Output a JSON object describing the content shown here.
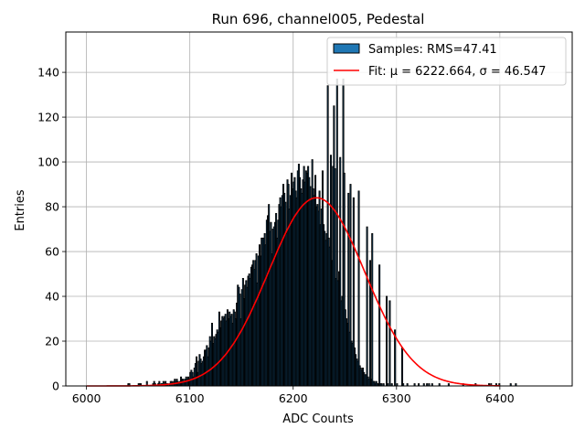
{
  "chart_data": {
    "type": "bar",
    "title": "Run 696, channel005, Pedestal",
    "xlabel": "ADC Counts",
    "ylabel": "Entries",
    "xlim": [
      5980,
      6470
    ],
    "ylim": [
      0,
      158
    ],
    "xticks": [
      6000,
      6100,
      6200,
      6300,
      6400
    ],
    "yticks": [
      0,
      20,
      40,
      60,
      80,
      100,
      120,
      140
    ],
    "grid": true,
    "legend_position": "top-right",
    "histogram": {
      "name": "Samples: RMS=47.41",
      "color": "#1f77b4",
      "edge_color": "#000000",
      "bin_width": 1,
      "bin_start": 6040,
      "values": [
        1,
        1,
        0,
        0,
        0,
        0,
        0,
        0,
        0,
        0,
        1,
        1,
        1,
        0,
        0,
        0,
        0,
        0,
        2,
        0,
        0,
        0,
        0,
        0,
        1,
        2,
        1,
        0,
        0,
        1,
        2,
        0,
        1,
        1,
        2,
        0,
        2,
        1,
        1,
        0,
        1,
        2,
        2,
        0,
        2,
        3,
        2,
        3,
        2,
        1,
        2,
        4,
        3,
        3,
        2,
        3,
        4,
        3,
        4,
        3,
        6,
        7,
        6,
        4,
        8,
        10,
        13,
        6,
        11,
        14,
        12,
        10,
        11,
        13,
        16,
        16,
        18,
        13,
        17,
        22,
        20,
        28,
        19,
        22,
        21,
        23,
        25,
        24,
        30,
        26,
        29,
        31,
        30,
        29,
        32,
        29,
        34,
        30,
        33,
        31,
        32,
        28,
        34,
        33,
        30,
        37,
        35,
        44,
        41,
        30,
        43,
        48,
        39,
        45,
        47,
        44,
        49,
        50,
        48,
        53,
        54,
        51,
        52,
        56,
        59,
        60,
        58,
        63,
        58,
        66,
        62,
        66,
        68,
        63,
        74,
        76,
        72,
        69,
        73,
        59,
        65,
        71,
        73,
        77,
        66,
        78,
        81,
        84,
        80,
        85,
        90,
        86,
        82,
        88,
        92,
        86,
        79,
        85,
        95,
        88,
        91,
        89,
        87,
        94,
        96,
        99,
        93,
        88,
        86,
        92,
        98,
        101,
        89,
        95,
        98,
        93,
        87,
        83,
        91,
        88,
        85,
        83,
        80,
        81,
        78,
        76,
        72,
        79,
        74,
        72,
        69,
        65,
        68,
        70,
        66,
        62,
        60,
        56,
        64,
        58,
        52,
        48,
        45,
        47,
        51,
        43,
        38,
        40,
        36,
        32,
        34,
        30,
        28,
        26,
        24,
        22,
        20,
        19,
        18,
        17,
        14,
        12,
        11,
        10,
        9,
        8,
        7,
        8,
        6,
        5,
        5,
        4,
        4,
        3,
        3,
        3,
        2,
        2,
        2,
        1,
        2,
        1,
        1,
        1,
        1,
        1,
        0,
        1,
        0,
        0,
        1,
        1,
        0,
        1,
        0,
        1,
        0,
        0,
        0,
        0,
        1,
        0,
        0,
        0,
        0,
        0,
        1,
        0,
        0,
        0,
        1,
        0,
        0,
        0,
        0,
        0,
        0,
        1,
        0,
        0,
        0,
        1,
        0,
        0,
        0,
        0,
        1,
        0,
        0,
        1,
        0,
        1,
        0,
        0,
        1,
        0,
        0,
        0,
        0,
        0,
        0,
        1,
        0,
        0,
        0,
        0,
        0,
        0,
        0,
        0,
        1,
        0,
        0,
        0,
        0,
        0,
        0,
        0,
        0,
        0,
        0,
        0,
        0,
        0,
        1,
        0,
        0,
        0,
        0,
        0,
        0,
        0,
        0,
        0,
        0,
        0,
        1,
        0,
        0,
        0,
        0,
        0,
        0,
        0,
        0,
        0,
        0,
        0,
        0,
        1,
        0,
        1,
        0,
        0,
        0,
        0,
        1,
        0,
        0,
        1,
        0,
        0,
        0,
        0,
        0,
        0,
        0,
        0,
        0,
        0,
        1,
        0,
        0,
        0,
        0,
        1
      ],
      "overrides": [
        [
          6185,
          74
        ],
        [
          6195,
          90
        ],
        [
          6201,
          93
        ],
        [
          6203,
          84
        ],
        [
          6211,
          91
        ],
        [
          6212,
          96
        ],
        [
          6216,
          89
        ],
        [
          6225,
          87
        ],
        [
          6228,
          96
        ],
        [
          6233,
          134
        ],
        [
          6236,
          103
        ],
        [
          6238,
          98
        ],
        [
          6239,
          125
        ],
        [
          6240,
          97
        ],
        [
          6242,
          137
        ],
        [
          6245,
          102
        ],
        [
          6248,
          137
        ],
        [
          6249,
          95
        ],
        [
          6253,
          86
        ],
        [
          6255,
          90
        ],
        [
          6258,
          84
        ],
        [
          6263,
          87
        ],
        [
          6271,
          71
        ],
        [
          6274,
          56
        ],
        [
          6276,
          68
        ],
        [
          6283,
          54
        ],
        [
          6290,
          40
        ],
        [
          6293,
          38
        ],
        [
          6298,
          25
        ],
        [
          6305,
          17
        ],
        [
          6146,
          45
        ],
        [
          6128,
          33
        ],
        [
          6133,
          31
        ],
        [
          6161,
          56
        ],
        [
          6165,
          46
        ],
        [
          6170,
          66
        ],
        [
          6176,
          81
        ],
        [
          6180,
          70
        ],
        [
          6193,
          68
        ],
        [
          6218,
          101
        ],
        [
          6221,
          94
        ]
      ]
    },
    "fit": {
      "name": "Fit: μ = 6222.664, σ = 46.547",
      "color": "#ff0000",
      "mu": 6222.664,
      "sigma": 46.547,
      "amplitude": 84,
      "x_range": [
        6000,
        6400
      ]
    }
  }
}
